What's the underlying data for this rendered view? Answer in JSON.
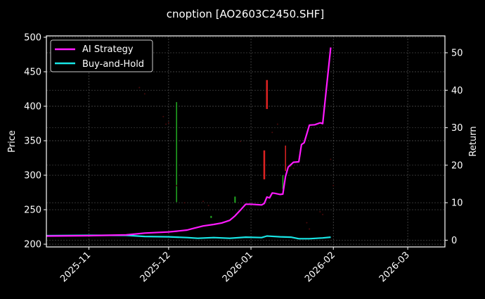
{
  "chart_data": {
    "type": "line",
    "title": "cnoption [AO2603C2450.SHF]",
    "xlabel": "",
    "ylabel_left": "Price",
    "ylabel_right": "Return",
    "x_tick_labels": [
      "2025-11",
      "2025-12",
      "2026-01",
      "2026-02",
      "2026-03"
    ],
    "y_left_ticks": [
      200,
      250,
      300,
      350,
      400,
      450,
      500
    ],
    "y_right_ticks": [
      0,
      10,
      20,
      30,
      40,
      50
    ],
    "ylim_left": [
      196,
      502
    ],
    "ylim_right": [
      -1.8,
      54.5
    ],
    "xlim": [
      "2025-10-16",
      "2026-03-15"
    ],
    "grid": true,
    "legend": {
      "position": "upper left",
      "entries": [
        "AI Strategy",
        "Buy-and-Hold"
      ]
    },
    "series": [
      {
        "name": "AI Strategy",
        "axis": "right",
        "color": "#ff1aff",
        "points": [
          [
            "2025-10-16",
            1.1
          ],
          [
            "2025-11-01",
            1.2
          ],
          [
            "2025-11-15",
            1.4
          ],
          [
            "2025-11-22",
            1.9
          ],
          [
            "2025-12-01",
            2.2
          ],
          [
            "2025-12-04",
            2.4
          ],
          [
            "2025-12-08",
            2.7
          ],
          [
            "2025-12-10",
            3.1
          ],
          [
            "2025-12-14",
            3.8
          ],
          [
            "2025-12-18",
            4.2
          ],
          [
            "2025-12-21",
            4.6
          ],
          [
            "2025-12-24",
            5.3
          ],
          [
            "2025-12-26",
            6.5
          ],
          [
            "2025-12-28",
            8.0
          ],
          [
            "2025-12-30",
            9.6
          ],
          [
            "2026-01-01",
            9.6
          ],
          [
            "2026-01-03",
            9.5
          ],
          [
            "2026-01-05",
            9.4
          ],
          [
            "2026-01-06",
            9.8
          ],
          [
            "2026-01-07",
            11.5
          ],
          [
            "2026-01-08",
            11.3
          ],
          [
            "2026-01-09",
            12.6
          ],
          [
            "2026-01-10",
            12.5
          ],
          [
            "2026-01-12",
            12.2
          ],
          [
            "2026-01-13",
            12.3
          ],
          [
            "2026-01-14",
            17.0
          ],
          [
            "2026-01-15",
            19.5
          ],
          [
            "2026-01-17",
            20.8
          ],
          [
            "2026-01-19",
            20.9
          ],
          [
            "2026-01-20",
            25.5
          ],
          [
            "2026-01-21",
            26.0
          ],
          [
            "2026-01-23",
            30.7
          ],
          [
            "2026-01-25",
            30.8
          ],
          [
            "2026-01-27",
            31.3
          ],
          [
            "2026-01-28",
            31.1
          ],
          [
            "2026-01-31",
            51.4
          ]
        ]
      },
      {
        "name": "Buy-and-Hold",
        "axis": "right",
        "color": "#18e6e6",
        "points": [
          [
            "2025-10-16",
            1.2
          ],
          [
            "2025-11-01",
            1.3
          ],
          [
            "2025-11-15",
            1.3
          ],
          [
            "2025-11-22",
            1.0
          ],
          [
            "2025-12-01",
            0.9
          ],
          [
            "2025-12-08",
            0.7
          ],
          [
            "2025-12-12",
            0.5
          ],
          [
            "2025-12-18",
            0.7
          ],
          [
            "2025-12-24",
            0.5
          ],
          [
            "2025-12-30",
            0.8
          ],
          [
            "2026-01-05",
            0.7
          ],
          [
            "2026-01-07",
            1.1
          ],
          [
            "2026-01-12",
            0.9
          ],
          [
            "2026-01-16",
            0.8
          ],
          [
            "2026-01-19",
            0.4
          ],
          [
            "2026-01-23",
            0.4
          ],
          [
            "2026-01-28",
            0.6
          ],
          [
            "2026-01-31",
            0.8
          ]
        ]
      }
    ],
    "price_bars": [
      {
        "date": "2025-12-04",
        "low": 261,
        "high": 406,
        "color": "#22aa22",
        "width": 1.5
      },
      {
        "date": "2025-12-17",
        "low": 238,
        "high": 241,
        "color": "#22aa22",
        "width": 2
      },
      {
        "date": "2025-12-26",
        "low": 260,
        "high": 269,
        "color": "#22aa22",
        "width": 2
      },
      {
        "date": "2026-01-07",
        "low": 396,
        "high": 438,
        "color": "#dd2222",
        "width": 2.5
      },
      {
        "date": "2026-01-06",
        "low": 294,
        "high": 336,
        "color": "#dd2222",
        "width": 2.5
      },
      {
        "date": "2026-01-14",
        "low": 306,
        "high": 343,
        "color": "#dd2222",
        "width": 1.5
      },
      {
        "date": "2026-01-13",
        "low": 280,
        "high": 300,
        "color": "#22aa22",
        "width": 1.5
      }
    ],
    "faint_points": [
      [
        "2025-11-20",
        427
      ],
      [
        "2025-11-22",
        418
      ],
      [
        "2025-11-29",
        385
      ],
      [
        "2025-12-01",
        376
      ],
      [
        "2025-11-30",
        374
      ],
      [
        "2025-12-04",
        285
      ],
      [
        "2025-12-07",
        260
      ],
      [
        "2025-12-14",
        262
      ],
      [
        "2025-12-16",
        256
      ],
      [
        "2025-12-28",
        349
      ],
      [
        "2026-01-09",
        362
      ],
      [
        "2026-01-11",
        374
      ],
      [
        "2026-01-16",
        313
      ],
      [
        "2026-01-17",
        310
      ],
      [
        "2026-01-22",
        231
      ],
      [
        "2026-01-23",
        222
      ],
      [
        "2026-01-27",
        247
      ],
      [
        "2026-01-28",
        243
      ],
      [
        "2026-01-31",
        323
      ],
      [
        "2026-02-01",
        285
      ]
    ]
  }
}
